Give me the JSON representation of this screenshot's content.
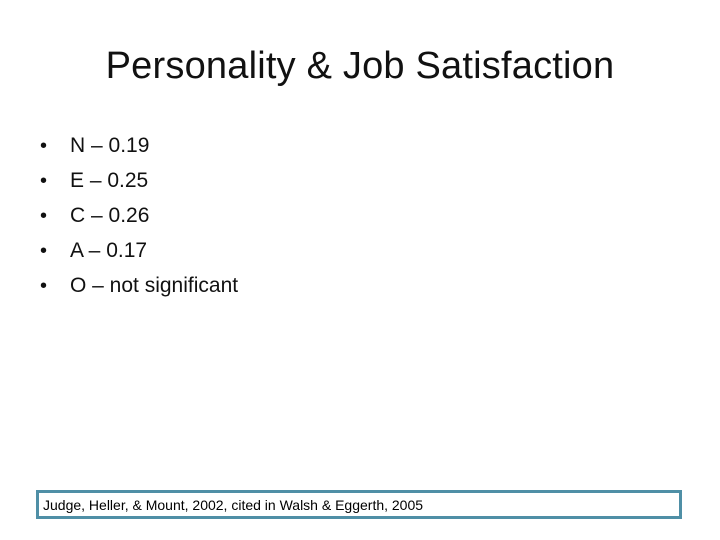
{
  "slide": {
    "title": "Personality & Job Satisfaction",
    "bullet_symbol": "•",
    "bullets": [
      {
        "text": "N – 0.19"
      },
      {
        "text": "E – 0.25"
      },
      {
        "text": "C – 0.26"
      },
      {
        "text": "A – 0.17"
      },
      {
        "text": "O – not significant"
      }
    ],
    "citation": "Judge, Heller, & Mount, 2002, cited in Walsh & Eggerth, 2005",
    "colors": {
      "background": "#ffffff",
      "text": "#111111",
      "citation_border": "#4f8fa6"
    }
  }
}
